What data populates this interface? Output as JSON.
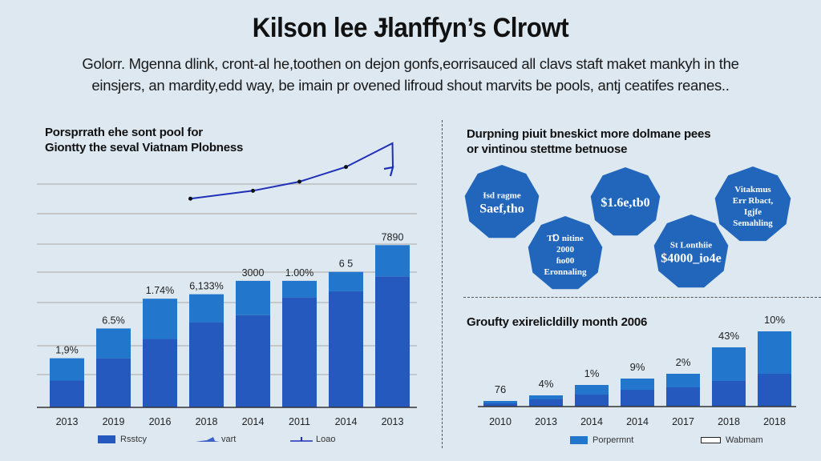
{
  "title": "Kilson lee Ɉlanffyn’s Clrowt",
  "subtitle_lines": [
    "Golorr. Mgenna dlink, cront-al he,toothen on dejon gonfs,eorrisauced all clavs staft maket mankyh in the",
    "einsjers, an mardity,edd way, be imain pr ovened lifroud shout marvits be pools, antj ceatifes reanes.."
  ],
  "colors": {
    "bar_dark": "#2659bd",
    "bar_light": "#2277cc",
    "line": "#1e2fb8",
    "octagon": "#2266bb",
    "grid": "#bdbdbd",
    "axis": "#333333"
  },
  "left_panel": {
    "title_lines": [
      "Porsprrath ehe sont pool for",
      "Giontty the seval Viatnam Plobness"
    ]
  },
  "right_top_panel": {
    "title_lines": [
      "Durpning piuit bneskict more dolmane pees",
      "or vintinou stettme betnuose"
    ],
    "octagons": [
      {
        "lines": [
          "Ɨsd ragme"
        ],
        "value": "Saef,tho"
      },
      {
        "lines": [
          "TⱰ nitine",
          "2000",
          "ɦo00",
          "Eronnaling"
        ],
        "value": ""
      },
      {
        "lines": [],
        "value": "$1.6e,tb0"
      },
      {
        "lines": [
          "St Lonthiie"
        ],
        "value": "$4000_io4e"
      },
      {
        "lines": [
          "Vitakmus",
          "Err Rbact,",
          "Igjfe",
          "Semahling"
        ],
        "value": ""
      }
    ]
  },
  "chart_data": [
    {
      "type": "bar",
      "stacked": true,
      "title": "Porsprrath ehe sont pool for Giontty the seval Viatnam Plobness",
      "categories": [
        "2013",
        "2019",
        "2016",
        "2018",
        "2014",
        "2011",
        "2014",
        "2013"
      ],
      "series": [
        {
          "name": "Rsstcy",
          "values": [
            18,
            33,
            46,
            57,
            62,
            74,
            78,
            88
          ]
        },
        {
          "name": "vart",
          "values": [
            15,
            20,
            27,
            19,
            23,
            11,
            13,
            21
          ]
        }
      ],
      "data_labels": [
        "1,9%",
        "6.5%",
        "1.74%",
        "6,133%",
        "3000",
        "1.00%",
        "6 5",
        "7890"
      ],
      "line_series": {
        "name": "Loao",
        "x_index": [
          3,
          4,
          5,
          6,
          7
        ],
        "values": [
          101,
          108,
          116,
          129,
          150
        ]
      },
      "legend": [
        "Rsstcy",
        "vart",
        "Loao"
      ],
      "legend_position": "bottom",
      "ylim": [
        0,
        150
      ],
      "grid": true,
      "xlabel": "",
      "ylabel": ""
    },
    {
      "type": "bar",
      "stacked": true,
      "title": "Groufty exirelicldilly month 2006",
      "categories": [
        "2010",
        "2013",
        "2014",
        "2014",
        "2017",
        "2018",
        "2018"
      ],
      "series": [
        {
          "name": "Porpermnt",
          "values": [
            4,
            9,
            15,
            21,
            24,
            32,
            41
          ]
        },
        {
          "name": "Wabmam",
          "values": [
            3,
            5,
            12,
            14,
            17,
            42,
            53
          ]
        }
      ],
      "data_labels": [
        "76",
        "4%",
        "1%",
        "9%",
        "2%",
        "43%",
        "10%"
      ],
      "legend": [
        "Porpermnt",
        "Wabmam"
      ],
      "legend_position": "bottom",
      "ylim": [
        0,
        100
      ],
      "grid": false,
      "xlabel": "",
      "ylabel": ""
    }
  ]
}
